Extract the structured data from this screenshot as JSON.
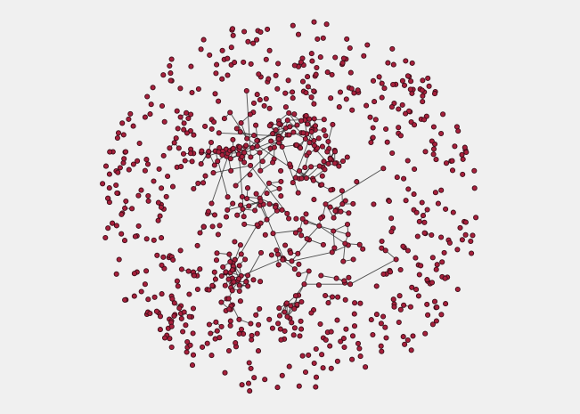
{
  "graph": {
    "type": "force-directed-network",
    "node_color": "#a8203c",
    "node_stroke": "#3a0e18",
    "edge_color": "#333333",
    "background": "#f0f0f0",
    "isolated_node_count": 560,
    "component_count": 12,
    "seed": 20240611
  }
}
